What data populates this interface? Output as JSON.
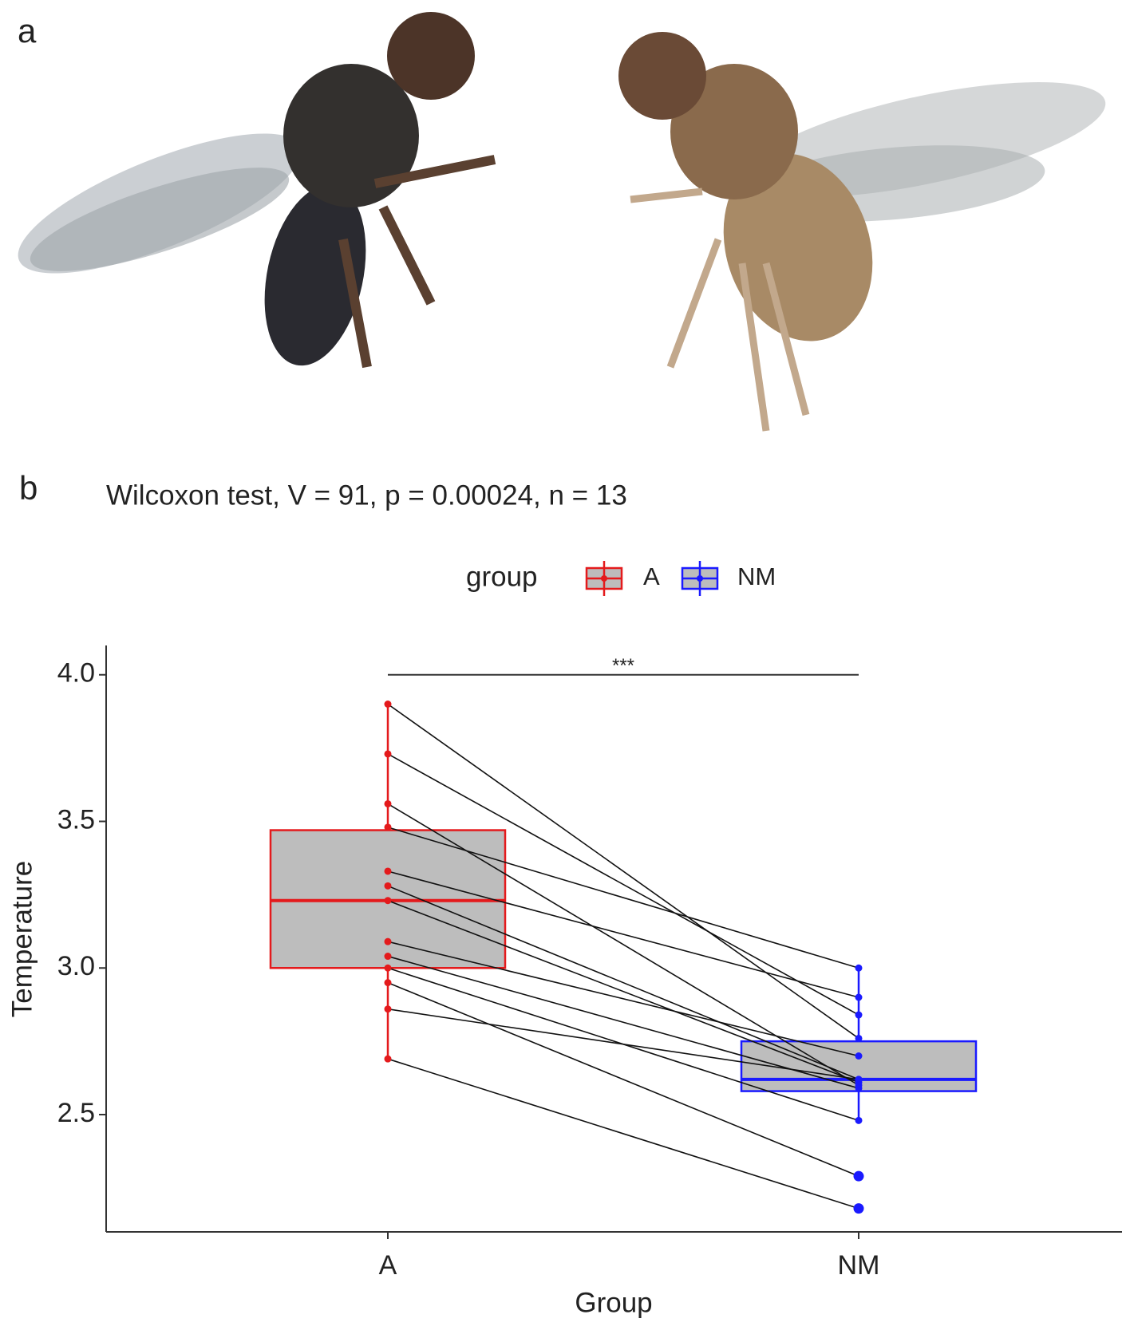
{
  "panel_labels": [
    "a",
    "b"
  ],
  "chart_data": {
    "type": "box",
    "title": "Wilcoxon test, V = 91, p = 0.00024, n = 13",
    "legend_title": "group",
    "x_label": "Group",
    "y_label": "Temperature",
    "annotation": "***",
    "categories": [
      "A",
      "NM"
    ],
    "ylim": [
      2.1,
      4.1
    ],
    "yticks": [
      2.5,
      {
        "value": 3,
        "label": "3.0"
      },
      3.5,
      {
        "value": 4,
        "label": "4.0"
      }
    ],
    "series": [
      {
        "name": "A",
        "color": "#e41a1c",
        "q1": 3.0,
        "median": 3.23,
        "q3": 3.47,
        "whisker_low": 2.69,
        "whisker_high": 3.9,
        "values": [
          3.9,
          3.73,
          3.56,
          3.48,
          3.33,
          3.28,
          3.23,
          3.09,
          3.04,
          3.0,
          2.95,
          2.86,
          2.69
        ]
      },
      {
        "name": "NM",
        "color": "#1a1aff",
        "q1": 2.58,
        "median": 2.62,
        "q3": 2.75,
        "whisker_low": 2.48,
        "whisker_high": 3.0,
        "values": [
          2.76,
          2.84,
          2.6,
          3.0,
          2.9,
          2.62,
          2.61,
          2.7,
          2.59,
          2.48,
          2.29,
          2.62,
          2.18
        ]
      }
    ]
  }
}
